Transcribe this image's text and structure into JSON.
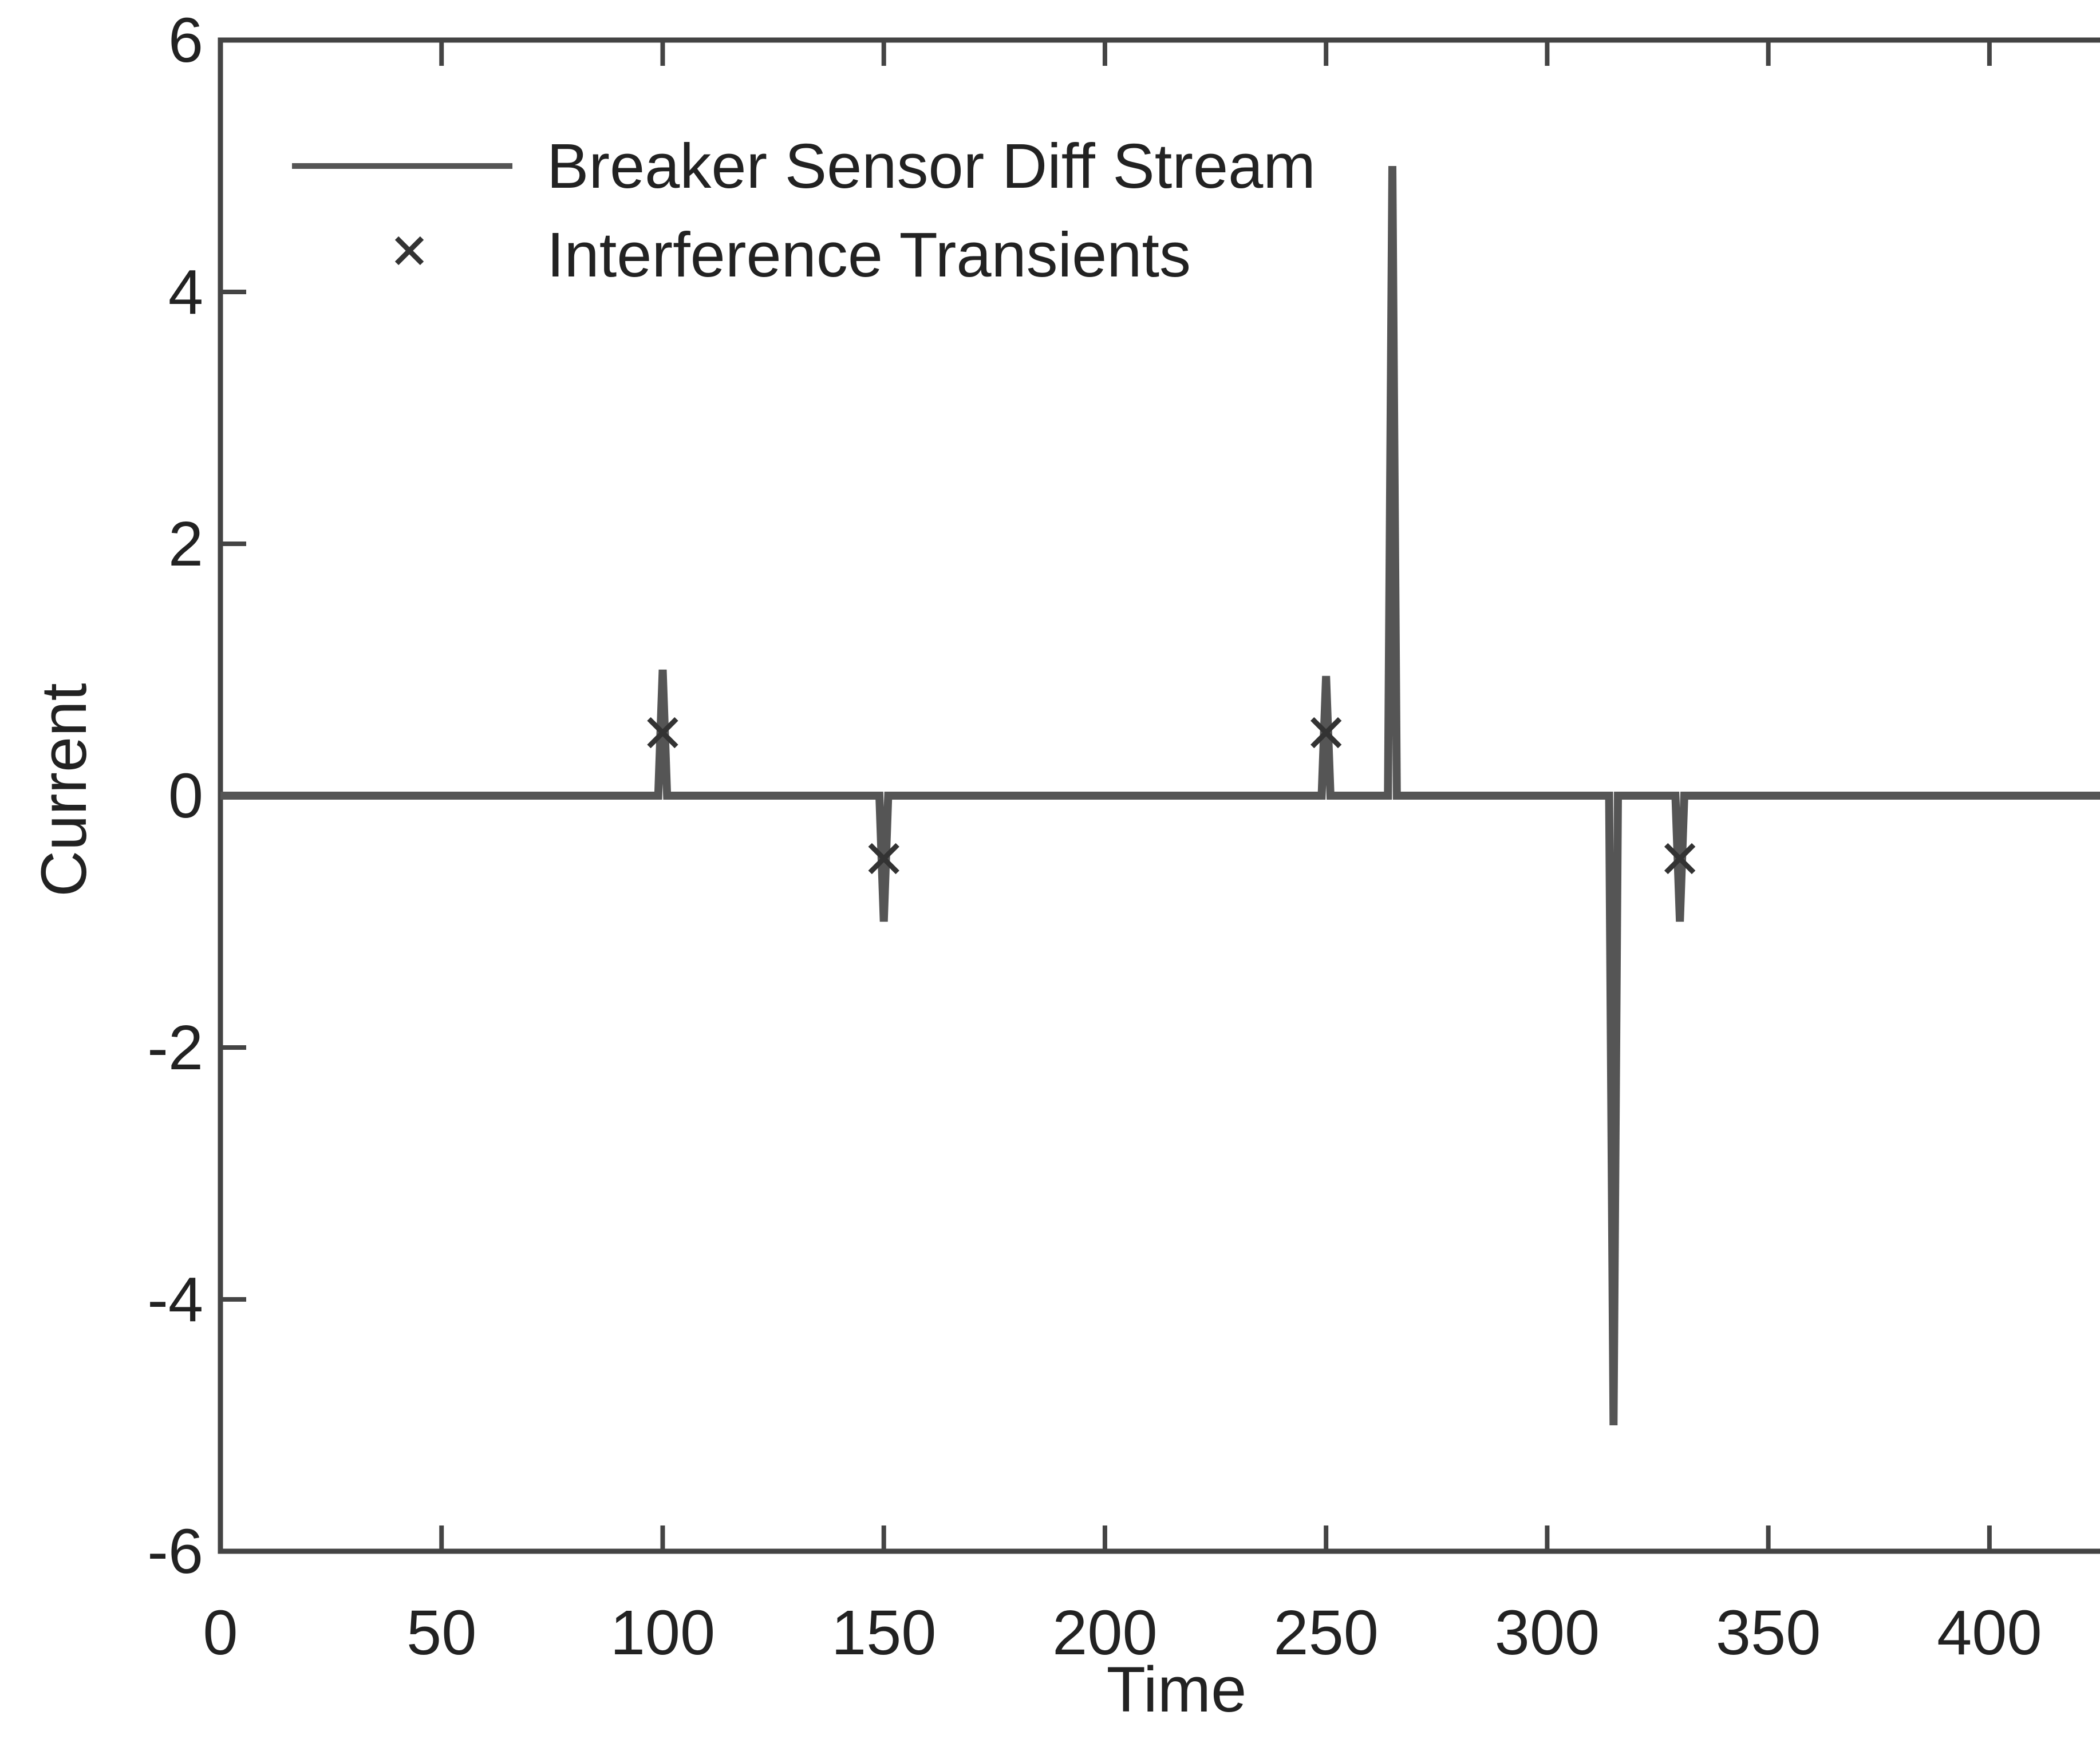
{
  "chart_data": {
    "type": "line",
    "xlabel": "Time",
    "ylabel": "Current",
    "xlim": [
      0,
      425
    ],
    "ylim": [
      -6,
      6
    ],
    "xticks": [
      "0",
      "50",
      "100",
      "150",
      "200",
      "250",
      "300",
      "350",
      "400"
    ],
    "yticks": [
      "6",
      "4",
      "2",
      "0",
      "-2",
      "-4",
      "-6"
    ],
    "xtick_values": [
      0,
      50,
      100,
      150,
      200,
      250,
      300,
      350,
      400
    ],
    "ytick_values": [
      6,
      4,
      2,
      0,
      -2,
      -4,
      -6
    ],
    "legend_position": "top-left",
    "series": [
      {
        "name": "Breaker Sensor Diff Stream",
        "style": "line",
        "x": [
          0,
          99,
          100,
          101,
          149,
          150,
          151,
          249,
          250,
          251,
          264,
          265,
          266,
          314,
          315,
          316,
          329,
          330,
          331,
          425
        ],
        "y": [
          0,
          0,
          1,
          0,
          0,
          -1,
          0,
          0,
          0.95,
          0,
          0,
          5,
          0,
          0,
          -5,
          0,
          0,
          -1,
          0,
          0
        ]
      },
      {
        "name": "Interference Transients",
        "style": "marker-x",
        "x": [
          100,
          150,
          250,
          330
        ],
        "y": [
          0.5,
          -0.5,
          0.5,
          -0.5
        ]
      }
    ],
    "colors": {
      "line": "#555555",
      "marker": "#333333",
      "frame": "#444444"
    }
  }
}
